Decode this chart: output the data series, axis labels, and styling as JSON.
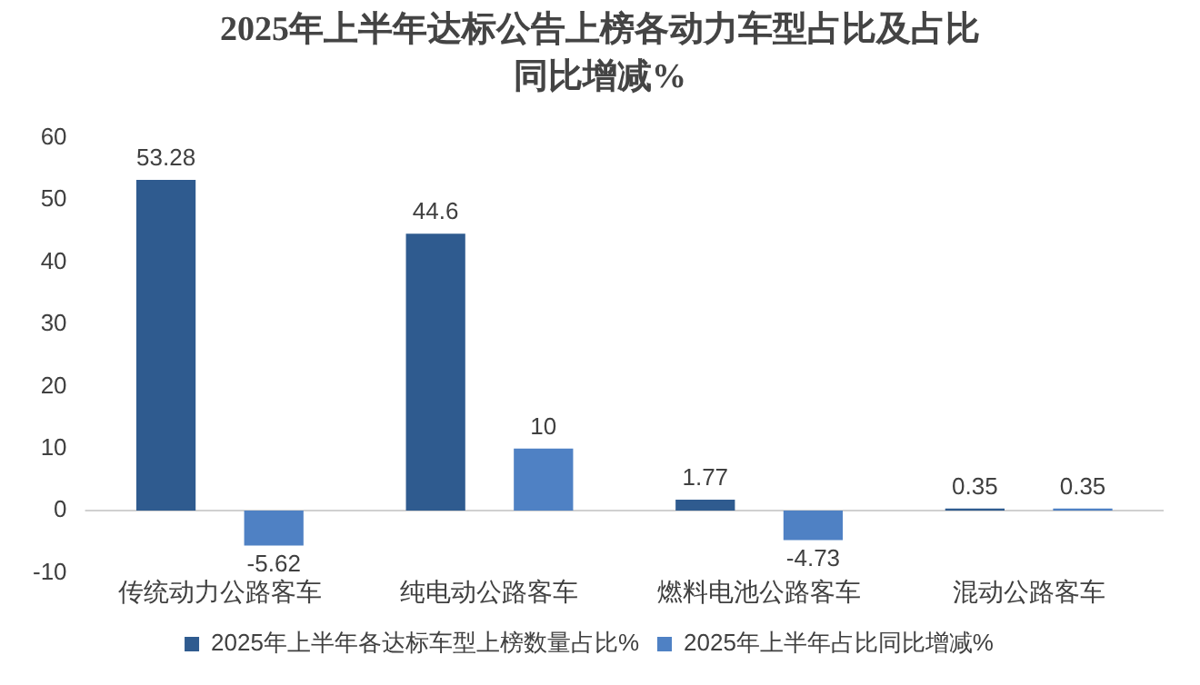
{
  "chart_data": {
    "type": "bar",
    "title": "2025年上半年达标公告上榜各动力车型占比及占比同比增减%",
    "categories": [
      "传统动力公路客车",
      "纯电动公路客车",
      "燃料电池公路客车",
      "混动公路客车"
    ],
    "series": [
      {
        "name": "2025年上半年各达标车型上榜数量占比%",
        "color": "#2f5b8f",
        "values": [
          53.28,
          44.6,
          1.77,
          0.35
        ]
      },
      {
        "name": "2025年上半年占比同比增减%",
        "color": "#4f81c4",
        "values": [
          -5.62,
          10,
          -4.73,
          0.35
        ]
      }
    ],
    "ylim": [
      -10,
      60
    ],
    "yticks": [
      -10,
      0,
      10,
      20,
      30,
      40,
      50,
      60
    ],
    "ref_lines": [
      {
        "axis": "y",
        "value": 0,
        "color": "#d0d0d0"
      }
    ],
    "legend": "bottom",
    "data_labels": true
  }
}
